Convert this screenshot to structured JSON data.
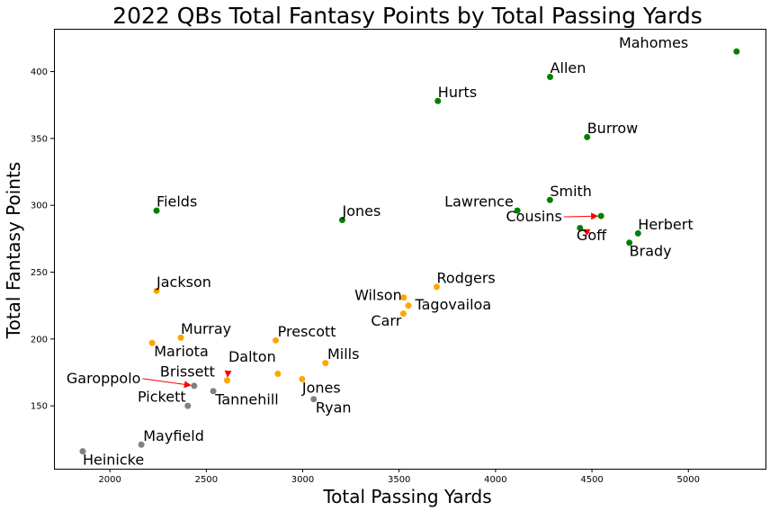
{
  "chart_data": {
    "type": "scatter",
    "title": "2022 QBs Total Fantasy Points by Total Passing Yards",
    "xlabel": "Total Passing Yards",
    "ylabel": "Total Fantasy Points",
    "xlim": [
      1710,
      5400
    ],
    "ylim": [
      103,
      432
    ],
    "xticks": [
      2000,
      2500,
      3000,
      3500,
      4000,
      4500,
      5000
    ],
    "yticks": [
      150,
      200,
      250,
      300,
      350,
      400
    ],
    "grid": false,
    "colors": {
      "green": "#008000",
      "orange": "#ffa500",
      "gray": "#808080",
      "arrow": "#ff0000"
    },
    "points": [
      {
        "label": "Mahomes",
        "x": 5250,
        "y": 415,
        "color": "green"
      },
      {
        "label": "Allen",
        "x": 4283,
        "y": 396,
        "color": "green"
      },
      {
        "label": "Hurts",
        "x": 3701,
        "y": 378,
        "color": "green"
      },
      {
        "label": "Burrow",
        "x": 4475,
        "y": 351,
        "color": "green"
      },
      {
        "label": "Smith",
        "x": 4282,
        "y": 304,
        "color": "green"
      },
      {
        "label": "Lawrence",
        "x": 4113,
        "y": 296,
        "color": "green"
      },
      {
        "label": "Fields",
        "x": 2242,
        "y": 296,
        "color": "green"
      },
      {
        "label": "Jones",
        "x": 3205,
        "y": 289,
        "color": "green"
      },
      {
        "label": "Cousins",
        "x": 4547,
        "y": 292,
        "color": "green"
      },
      {
        "label": "Goff",
        "x": 4438,
        "y": 283,
        "color": "green"
      },
      {
        "label": "Herbert",
        "x": 4739,
        "y": 279,
        "color": "green"
      },
      {
        "label": "Brady",
        "x": 4694,
        "y": 272,
        "color": "green"
      },
      {
        "label": "Rodgers",
        "x": 3695,
        "y": 239,
        "color": "orange"
      },
      {
        "label": "Jackson",
        "x": 2242,
        "y": 236,
        "color": "orange"
      },
      {
        "label": "Wilson",
        "x": 3524,
        "y": 231,
        "color": "orange"
      },
      {
        "label": "Tagovailoa",
        "x": 3548,
        "y": 225,
        "color": "orange"
      },
      {
        "label": "Carr",
        "x": 3522,
        "y": 219,
        "color": "orange"
      },
      {
        "label": "Murray",
        "x": 2368,
        "y": 201,
        "color": "orange"
      },
      {
        "label": "Prescott",
        "x": 2860,
        "y": 199,
        "color": "orange"
      },
      {
        "label": "Mariota",
        "x": 2219,
        "y": 197,
        "color": "orange"
      },
      {
        "label": "Mills",
        "x": 3118,
        "y": 182,
        "color": "orange"
      },
      {
        "label": "Dalton",
        "x": 2871,
        "y": 174,
        "color": "orange"
      },
      {
        "label": "Jones",
        "x": 2997,
        "y": 170,
        "color": "orange"
      },
      {
        "label": "Brissett",
        "x": 2608,
        "y": 169,
        "color": "orange"
      },
      {
        "label": "Garoppolo",
        "x": 2437,
        "y": 165,
        "color": "gray"
      },
      {
        "label": "Tannehill",
        "x": 2536,
        "y": 161,
        "color": "gray"
      },
      {
        "label": "Ryan",
        "x": 3057,
        "y": 155,
        "color": "gray"
      },
      {
        "label": "Pickett",
        "x": 2404,
        "y": 150,
        "color": "gray"
      },
      {
        "label": "Mayfield",
        "x": 2163,
        "y": 121,
        "color": "gray"
      },
      {
        "label": "Heinicke",
        "x": 1859,
        "y": 116,
        "color": "gray"
      }
    ],
    "annotations": [
      {
        "point": 0,
        "dx": 5000,
        "dy": 418,
        "anchor": "end"
      },
      {
        "point": 1,
        "dx": 4283,
        "dy": 399,
        "anchor": "start"
      },
      {
        "point": 2,
        "dx": 3701,
        "dy": 381,
        "anchor": "start"
      },
      {
        "point": 3,
        "dx": 4475,
        "dy": 354,
        "anchor": "start"
      },
      {
        "point": 4,
        "dx": 4282,
        "dy": 307,
        "anchor": "start"
      },
      {
        "point": 5,
        "dx": 4093,
        "dy": 299,
        "anchor": "end"
      },
      {
        "point": 6,
        "dx": 2242,
        "dy": 299,
        "anchor": "start"
      },
      {
        "point": 7,
        "dx": 3205,
        "dy": 292,
        "anchor": "start"
      },
      {
        "point": 8,
        "dx": 4345,
        "dy": 288,
        "anchor": "end",
        "arrow": true
      },
      {
        "point": 9,
        "dx": 4420,
        "dy": 274,
        "anchor": "start",
        "arrow": true
      },
      {
        "point": 10,
        "dx": 4739,
        "dy": 282,
        "anchor": "start"
      },
      {
        "point": 11,
        "dx": 4694,
        "dy": 262,
        "anchor": "start"
      },
      {
        "point": 12,
        "dx": 3695,
        "dy": 242,
        "anchor": "start"
      },
      {
        "point": 13,
        "dx": 2242,
        "dy": 239,
        "anchor": "start"
      },
      {
        "point": 14,
        "dx": 3514,
        "dy": 229,
        "anchor": "end"
      },
      {
        "point": 15,
        "dx": 3583,
        "dy": 222,
        "anchor": "start"
      },
      {
        "point": 16,
        "dx": 3512,
        "dy": 210,
        "anchor": "end"
      },
      {
        "point": 17,
        "dx": 2368,
        "dy": 204,
        "anchor": "start"
      },
      {
        "point": 18,
        "dx": 2870,
        "dy": 202,
        "anchor": "start"
      },
      {
        "point": 19,
        "dx": 2229,
        "dy": 187,
        "anchor": "start"
      },
      {
        "point": 20,
        "dx": 3128,
        "dy": 185,
        "anchor": "start"
      },
      {
        "point": 21,
        "dx": 2861,
        "dy": 183,
        "anchor": "end"
      },
      {
        "point": 22,
        "dx": 2997,
        "dy": 160,
        "anchor": "start"
      },
      {
        "point": 23,
        "dx": 2260,
        "dy": 172,
        "anchor": "start",
        "arrow": true
      },
      {
        "point": 24,
        "dx": 2160,
        "dy": 167,
        "anchor": "end",
        "arrow": true
      },
      {
        "point": 25,
        "dx": 2546,
        "dy": 151,
        "anchor": "start"
      },
      {
        "point": 26,
        "dx": 3067,
        "dy": 145,
        "anchor": "start"
      },
      {
        "point": 27,
        "dx": 2394,
        "dy": 153,
        "anchor": "end"
      },
      {
        "point": 28,
        "dx": 2173,
        "dy": 124,
        "anchor": "start"
      },
      {
        "point": 29,
        "dx": 1859,
        "dy": 106,
        "anchor": "start"
      }
    ]
  }
}
